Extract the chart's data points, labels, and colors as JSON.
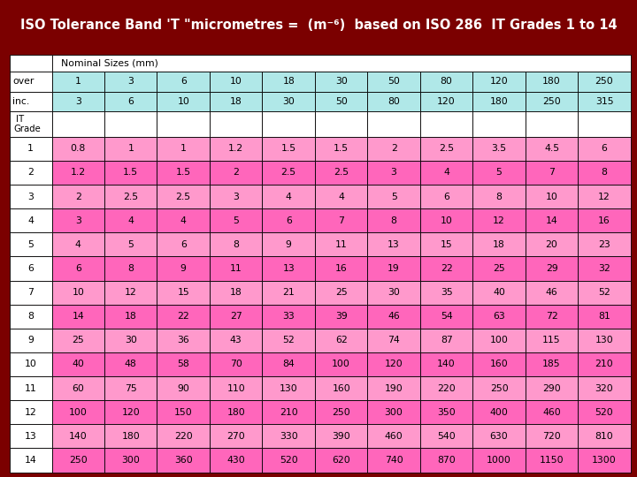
{
  "title": "ISO Tolerance Band 'T \"micrometres =  (m⁻⁶)  based on ISO 286  IT Grades 1 to 14",
  "bg_color": "#7B0000",
  "header_bg": "#FFFFFF",
  "over_inc_bg": "#B0E8E8",
  "pink_light": "#FF99CC",
  "pink_dark": "#FF66BB",
  "col_headers_over": [
    "1",
    "3",
    "6",
    "10",
    "18",
    "30",
    "50",
    "80",
    "120",
    "180",
    "250"
  ],
  "col_headers_inc": [
    "3",
    "6",
    "10",
    "18",
    "30",
    "50",
    "80",
    "120",
    "180",
    "250",
    "315"
  ],
  "it_grades": [
    "1",
    "2",
    "3",
    "4",
    "5",
    "6",
    "7",
    "8",
    "9",
    "10",
    "11",
    "12",
    "13",
    "14"
  ],
  "data": [
    [
      "0.8",
      "1",
      "1",
      "1.2",
      "1.5",
      "1.5",
      "2",
      "2.5",
      "3.5",
      "4.5",
      "6"
    ],
    [
      "1.2",
      "1.5",
      "1.5",
      "2",
      "2.5",
      "2.5",
      "3",
      "4",
      "5",
      "7",
      "8"
    ],
    [
      "2",
      "2.5",
      "2.5",
      "3",
      "4",
      "4",
      "5",
      "6",
      "8",
      "10",
      "12"
    ],
    [
      "3",
      "4",
      "4",
      "5",
      "6",
      "7",
      "8",
      "10",
      "12",
      "14",
      "16"
    ],
    [
      "4",
      "5",
      "6",
      "8",
      "9",
      "11",
      "13",
      "15",
      "18",
      "20",
      "23"
    ],
    [
      "6",
      "8",
      "9",
      "11",
      "13",
      "16",
      "19",
      "22",
      "25",
      "29",
      "32"
    ],
    [
      "10",
      "12",
      "15",
      "18",
      "21",
      "25",
      "30",
      "35",
      "40",
      "46",
      "52"
    ],
    [
      "14",
      "18",
      "22",
      "27",
      "33",
      "39",
      "46",
      "54",
      "63",
      "72",
      "81"
    ],
    [
      "25",
      "30",
      "36",
      "43",
      "52",
      "62",
      "74",
      "87",
      "100",
      "115",
      "130"
    ],
    [
      "40",
      "48",
      "58",
      "70",
      "84",
      "100",
      "120",
      "140",
      "160",
      "185",
      "210"
    ],
    [
      "60",
      "75",
      "90",
      "110",
      "130",
      "160",
      "190",
      "220",
      "250",
      "290",
      "320"
    ],
    [
      "100",
      "120",
      "150",
      "180",
      "210",
      "250",
      "300",
      "350",
      "400",
      "460",
      "520"
    ],
    [
      "140",
      "180",
      "220",
      "270",
      "330",
      "390",
      "460",
      "540",
      "630",
      "720",
      "810"
    ],
    [
      "250",
      "300",
      "360",
      "430",
      "520",
      "620",
      "740",
      "870",
      "1000",
      "1150",
      "1300"
    ]
  ],
  "cell_text_color": "#000000",
  "title_text_color": "#FFFFFF",
  "title_fontsize": 10.5,
  "cell_fontsize": 7.8,
  "header_fontsize": 7.8
}
